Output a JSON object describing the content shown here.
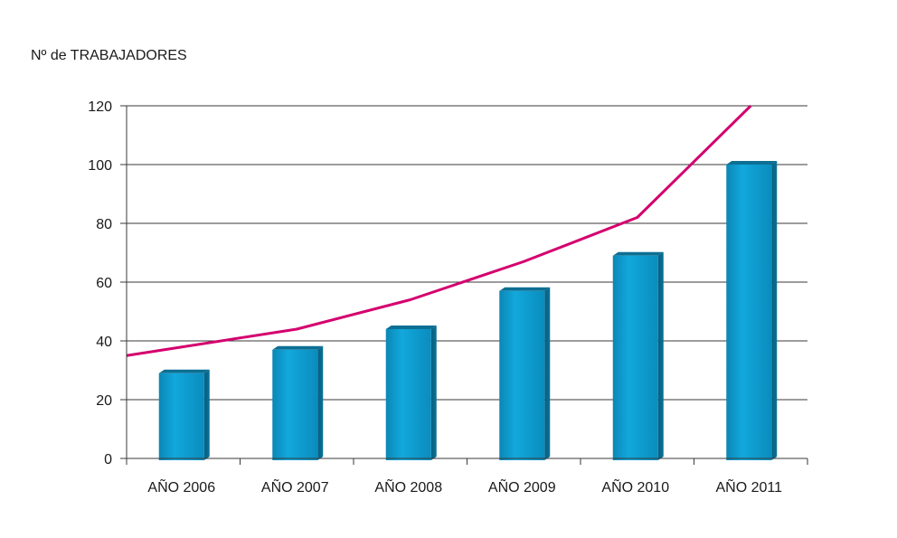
{
  "chart_data": {
    "type": "bar",
    "ylabel": "Nº de TRABAJADORES",
    "categories": [
      "AÑO 2006",
      "AÑO 2007",
      "AÑO 2008",
      "AÑO 2009",
      "AÑO 2010",
      "AÑO 2011"
    ],
    "ylim": [
      0,
      120
    ],
    "yticks": [
      0,
      20,
      40,
      60,
      80,
      100,
      120
    ],
    "grid": true,
    "series": [
      {
        "type": "bar",
        "values": [
          29,
          37,
          44,
          57,
          69,
          100
        ],
        "color": "#0a96c8"
      },
      {
        "type": "line",
        "values": [
          38,
          44,
          54,
          67,
          82,
          120
        ],
        "color": "#d4006e"
      }
    ]
  }
}
